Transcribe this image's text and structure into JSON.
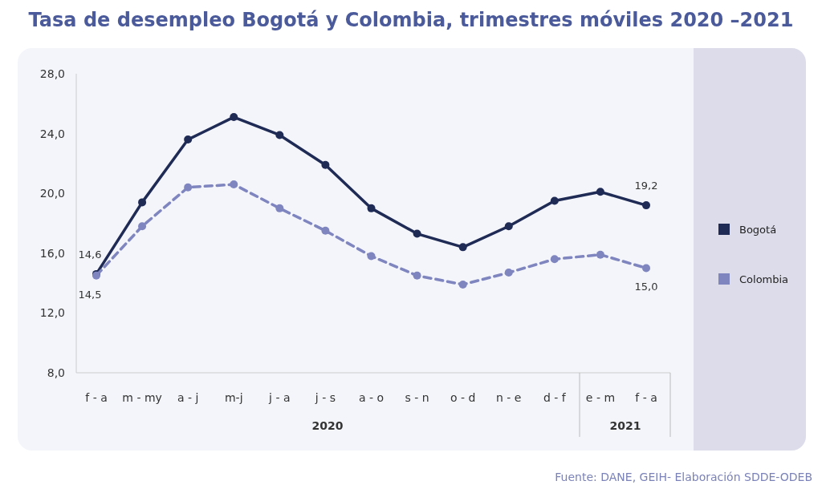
{
  "chart_data": {
    "type": "line",
    "title": "Tasa de desempleo Bogotá y Colombia, trimestres móviles 2020 –2021",
    "categories": [
      "f - a",
      "m - my",
      "a - j",
      "m-j",
      "j - a",
      "j - s",
      "a - o",
      "s - n",
      "o - d",
      "n - e",
      "d - f",
      "e - m",
      "f - a"
    ],
    "series": [
      {
        "name": "Bogotá",
        "color": "#1f2a55",
        "line_style": "solid",
        "values": [
          14.6,
          19.4,
          23.6,
          25.1,
          23.9,
          21.9,
          19.0,
          17.3,
          16.4,
          17.8,
          19.5,
          20.1,
          19.2
        ],
        "value_labels": [
          "14,6",
          null,
          null,
          null,
          null,
          null,
          null,
          null,
          null,
          null,
          null,
          null,
          "19,2"
        ]
      },
      {
        "name": "Colombia",
        "color": "#7f85bf",
        "line_style": "dashed",
        "values": [
          14.5,
          17.8,
          20.4,
          20.6,
          19.0,
          17.5,
          15.8,
          14.5,
          13.9,
          14.7,
          15.6,
          15.9,
          15.0
        ],
        "value_labels": [
          "14,5",
          null,
          null,
          null,
          null,
          null,
          null,
          null,
          null,
          null,
          null,
          null,
          "15,0"
        ]
      }
    ],
    "ylim": [
      8,
      28
    ],
    "yticks": [
      {
        "value": 8,
        "label": "8,0"
      },
      {
        "value": 12,
        "label": "12,0"
      },
      {
        "value": 16,
        "label": "16,0"
      },
      {
        "value": 20,
        "label": "20,0"
      },
      {
        "value": 24,
        "label": "24,0"
      },
      {
        "value": 28,
        "label": "28,0"
      }
    ],
    "marker": "circle",
    "legend": "right",
    "grid": false,
    "annotations": [
      "2020",
      "2021",
      "Fuente: DANE, GEIH- Elaboración SDDE-ODEB"
    ]
  }
}
